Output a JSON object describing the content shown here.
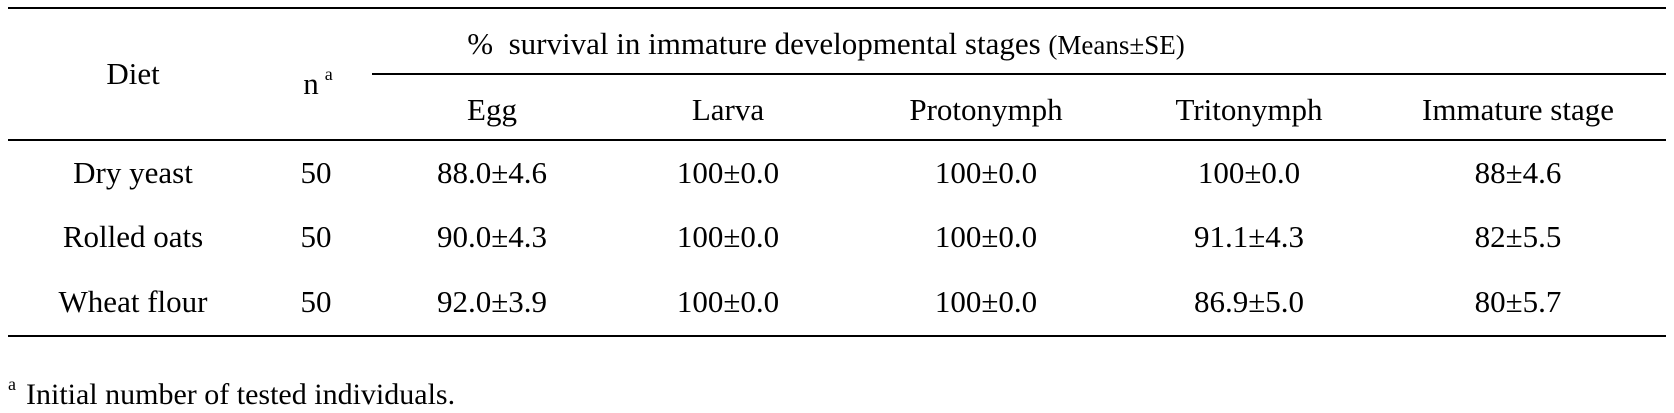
{
  "table": {
    "header": {
      "diet": "Diet",
      "n": "n",
      "n_sup": "a",
      "group_main": "%  survival in immature developmental stages ",
      "group_suffix": "(Means±SE)",
      "columns": [
        "Egg",
        "Larva",
        "Protonymph",
        "Tritonymph",
        "Immature stage"
      ]
    },
    "rows": [
      {
        "diet": "Dry yeast",
        "n": "50",
        "values": [
          "88.0±4.6",
          "100±0.0",
          "100±0.0",
          "100±0.0",
          "88±4.6"
        ]
      },
      {
        "diet": "Rolled oats",
        "n": "50",
        "values": [
          "90.0±4.3",
          "100±0.0",
          "100±0.0",
          "91.1±4.3",
          "82±5.5"
        ]
      },
      {
        "diet": "Wheat flour",
        "n": "50",
        "values": [
          "92.0±3.9",
          "100±0.0",
          "100±0.0",
          "86.9±5.0",
          "80±5.7"
        ]
      }
    ],
    "footnote": {
      "marker": "a",
      "text": "Initial number of tested individuals."
    }
  }
}
